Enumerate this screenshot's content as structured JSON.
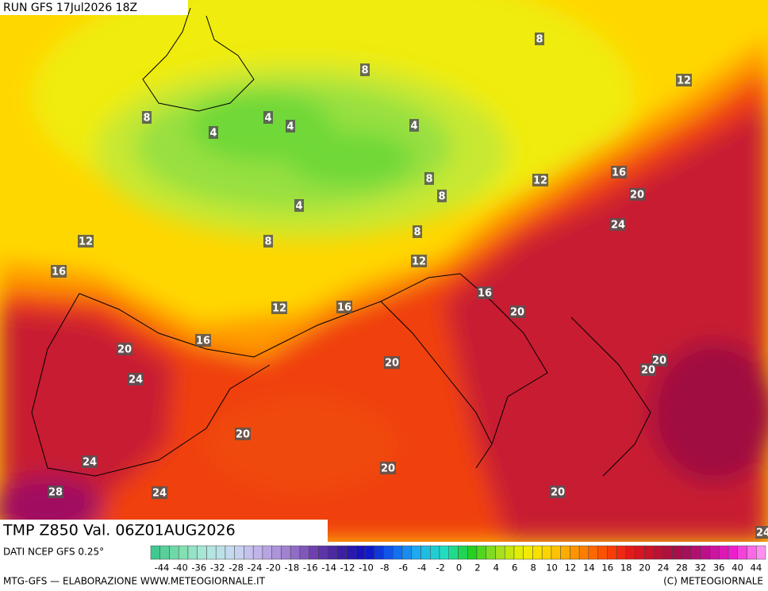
{
  "header": {
    "run": "RUN GFS 17Jul2026 18Z"
  },
  "contour_labels": [
    "8",
    "8",
    "12",
    "8",
    "4",
    "4",
    "4",
    "4",
    "16",
    "8",
    "12",
    "8",
    "20",
    "4",
    "24",
    "8",
    "12",
    "8",
    "12",
    "16",
    "16",
    "12",
    "16",
    "20",
    "16",
    "20",
    "20",
    "20",
    "20",
    "24",
    "20",
    "24",
    "20",
    "28",
    "24",
    "20",
    "24"
  ],
  "footer": {
    "title": "TMP Z850 Val. 06Z01AUG2026",
    "source": "DATI NCEP GFS 0.25°",
    "credit": "MTG-GFS — ELABORAZIONE WWW.METEOGIORNALE.IT",
    "copyright": "(C) METEOGIORNALE"
  },
  "legend": {
    "labels": [
      "-44",
      "-40",
      "-36",
      "-32",
      "-28",
      "-24",
      "-20",
      "-18",
      "-16",
      "-14",
      "-12",
      "-10",
      "-8",
      "-6",
      "-4",
      "-2",
      "0",
      "2",
      "4",
      "6",
      "8",
      "10",
      "12",
      "14",
      "16",
      "18",
      "20",
      "24",
      "28",
      "32",
      "36",
      "40",
      "44"
    ]
  }
}
